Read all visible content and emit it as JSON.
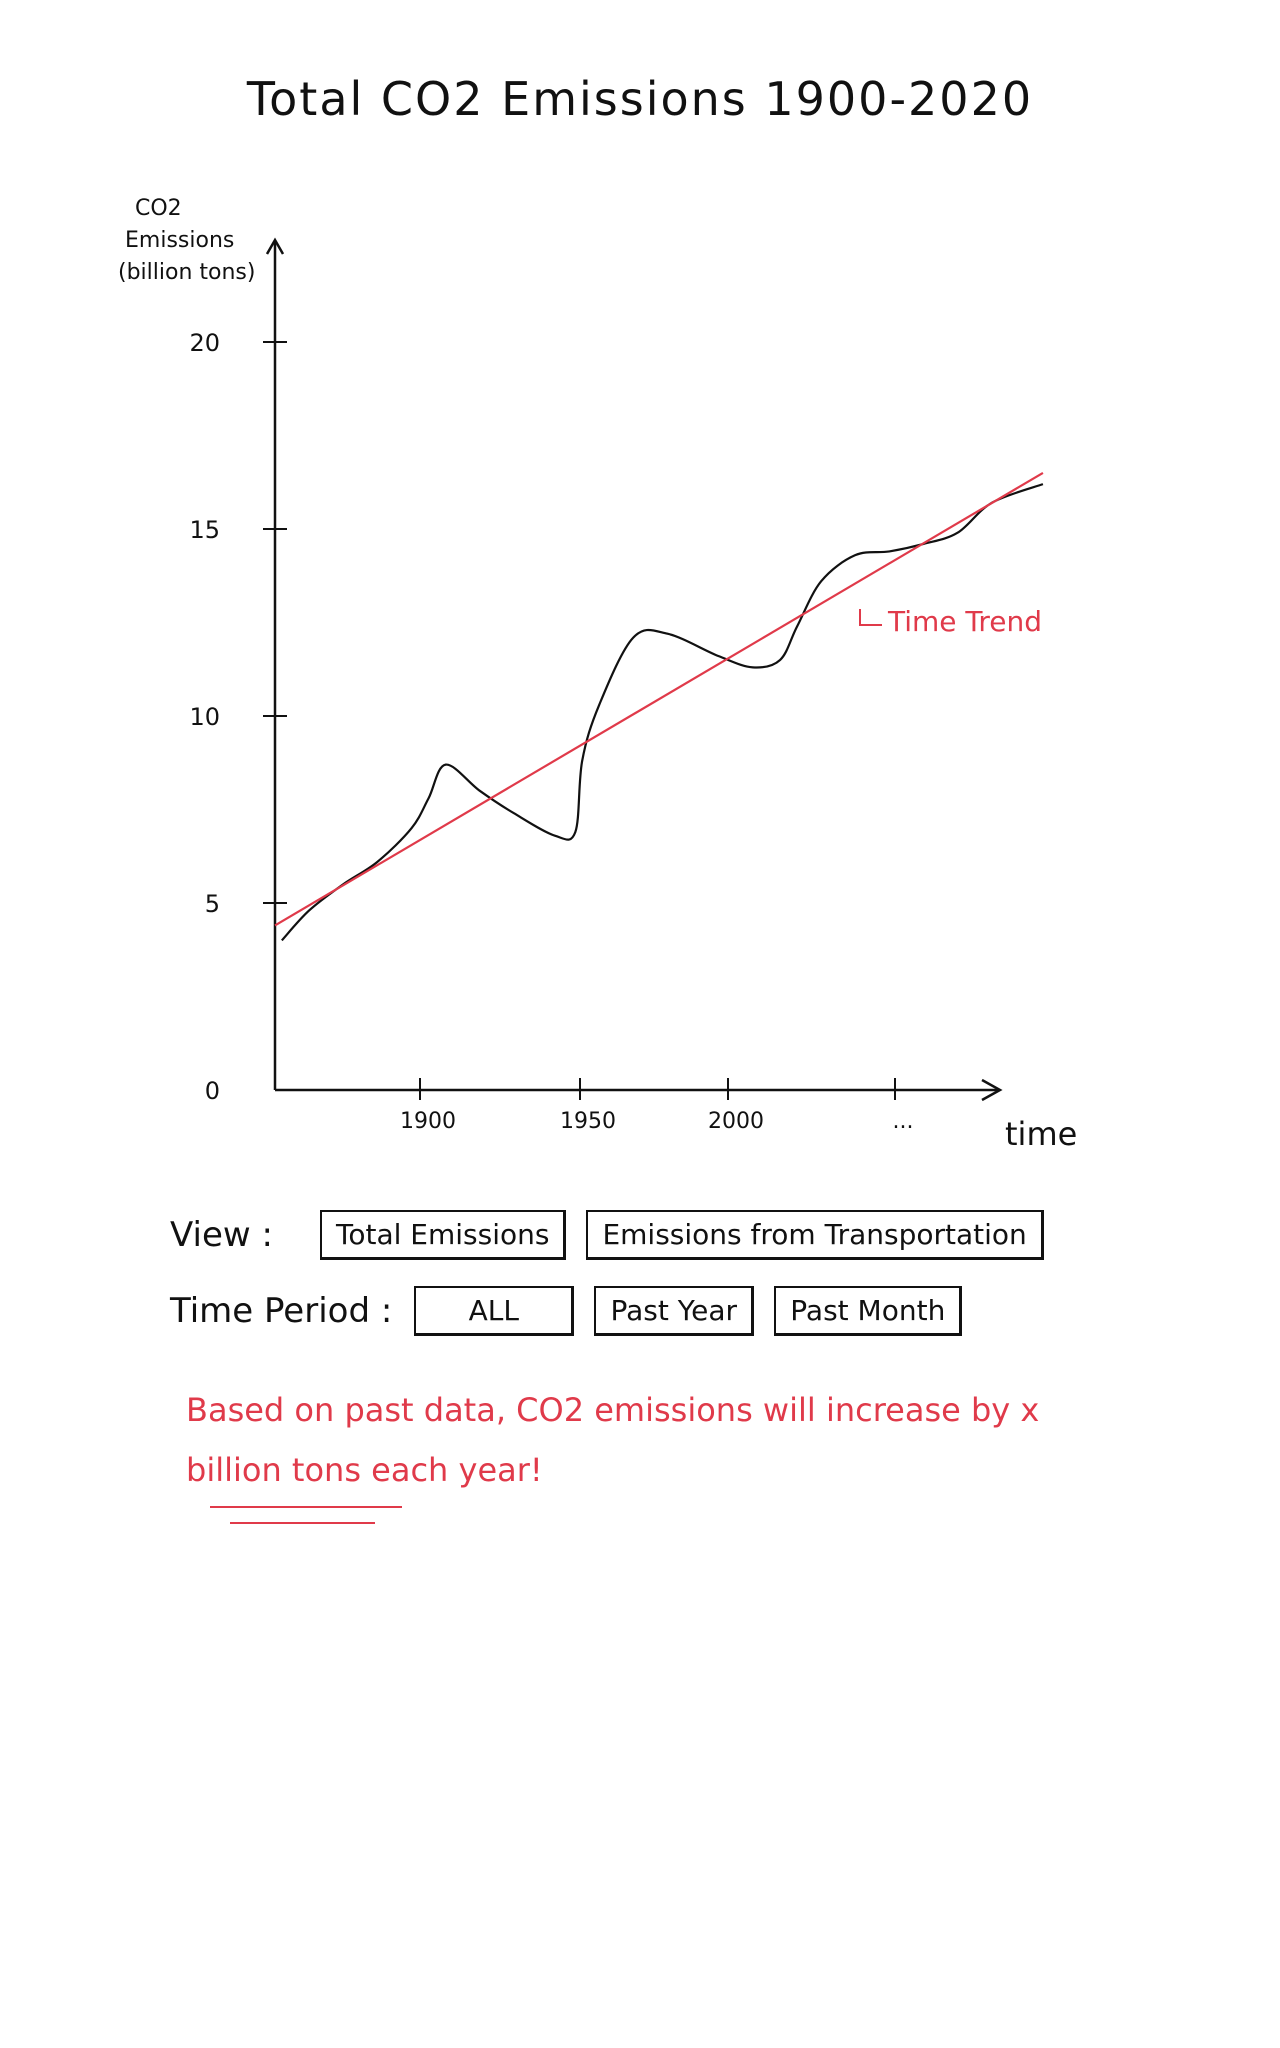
{
  "title": "Total CO2 Emissions 1900-2020",
  "chart_data": {
    "type": "line",
    "title": "Total CO2 Emissions 1900-2020",
    "ylabel": "CO2 Emissions (billion tons)",
    "xlabel": "time",
    "ylim": [
      0,
      20
    ],
    "yticks": [
      "0",
      "5",
      "10",
      "15",
      "20"
    ],
    "xticks": [
      "1900",
      "1950",
      "2000",
      "..."
    ],
    "x": [
      1852,
      1860,
      1870,
      1880,
      1890,
      1895,
      1900,
      1910,
      1920,
      1932,
      1938,
      1940,
      1945,
      1955,
      1965,
      1980,
      1990,
      1998,
      2003,
      2010,
      2020,
      2030,
      2040,
      2050,
      2060,
      2075
    ],
    "series": [
      {
        "name": "",
        "values": [
          4.0,
          4.8,
          5.5,
          6.1,
          7.0,
          7.8,
          8.7,
          8.0,
          7.4,
          6.8,
          6.9,
          8.8,
          10.3,
          12.1,
          12.2,
          11.6,
          11.3,
          11.5,
          12.4,
          13.6,
          14.3,
          14.4,
          14.6,
          14.9,
          15.7,
          16.2
        ]
      },
      {
        "name": "Time Trend",
        "color": "#e03a4a",
        "x": [
          1850,
          2075
        ],
        "values": [
          4.4,
          16.5
        ]
      }
    ],
    "annotations": [
      "Time Trend"
    ]
  },
  "controls": {
    "view_label": "View :",
    "view_options": [
      "Total Emissions",
      "Emissions from Transportation"
    ],
    "period_label": "Time Period :",
    "period_options": [
      "ALL",
      "Past Year",
      "Past Month"
    ]
  },
  "prediction_text": "Based on past data, CO2 emissions will increase by x billion tons each year!",
  "colors": {
    "ink": "#111111",
    "accent": "#e03a4a"
  }
}
